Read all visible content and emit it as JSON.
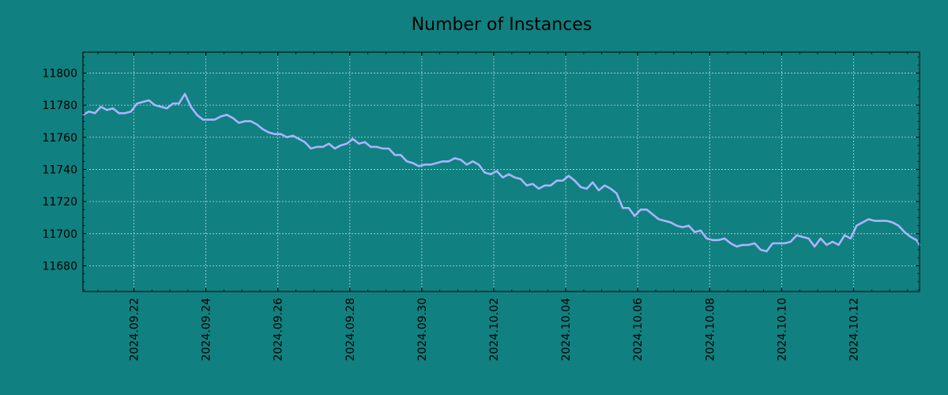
{
  "chart_data": {
    "type": "line",
    "title": "Number of Instances",
    "xlabel": "",
    "ylabel": "",
    "x_tick_labels": [
      "2024.09.22",
      "2024.09.24",
      "2024.09.26",
      "2024.09.28",
      "2024.09.30",
      "2024.10.02",
      "2024.10.04",
      "2024.10.06",
      "2024.10.08",
      "2024.10.10",
      "2024.10.12"
    ],
    "y_tick_labels": [
      "11680",
      "11700",
      "11720",
      "11740",
      "11760",
      "11780",
      "11800"
    ],
    "xlim": [
      "2024-09-20T14:00",
      "2024-10-13T20:00"
    ],
    "ylim": [
      11664,
      11813
    ],
    "grid": true,
    "colors": {
      "background": "#108080",
      "line": "#aab4ff",
      "grid": "#d0d0d0",
      "axes": "#000000"
    },
    "series": [
      {
        "points": [
          [
            "2024-09-20T14:00",
            11774
          ],
          [
            "2024-09-20T18:00",
            11776
          ],
          [
            "2024-09-20T22:00",
            11775
          ],
          [
            "2024-09-21T02:00",
            11779
          ],
          [
            "2024-09-21T06:00",
            11777
          ],
          [
            "2024-09-21T10:00",
            11778
          ],
          [
            "2024-09-21T14:00",
            11775
          ],
          [
            "2024-09-21T18:00",
            11775
          ],
          [
            "2024-09-21T22:00",
            11776
          ],
          [
            "2024-09-22T02:00",
            11781
          ],
          [
            "2024-09-22T06:00",
            11782
          ],
          [
            "2024-09-22T10:00",
            11783
          ],
          [
            "2024-09-22T14:00",
            11780
          ],
          [
            "2024-09-22T18:00",
            11779
          ],
          [
            "2024-09-22T22:00",
            11778
          ],
          [
            "2024-09-23T02:00",
            11781
          ],
          [
            "2024-09-23T06:00",
            11781
          ],
          [
            "2024-09-23T10:00",
            11787
          ],
          [
            "2024-09-23T14:00",
            11779
          ],
          [
            "2024-09-23T18:00",
            11774
          ],
          [
            "2024-09-23T22:00",
            11771
          ],
          [
            "2024-09-24T02:00",
            11771
          ],
          [
            "2024-09-24T06:00",
            11771
          ],
          [
            "2024-09-24T10:00",
            11773
          ],
          [
            "2024-09-24T14:00",
            11774
          ],
          [
            "2024-09-24T18:00",
            11772
          ],
          [
            "2024-09-24T22:00",
            11769
          ],
          [
            "2024-09-25T02:00",
            11770
          ],
          [
            "2024-09-25T06:00",
            11770
          ],
          [
            "2024-09-25T10:00",
            11768
          ],
          [
            "2024-09-25T14:00",
            11765
          ],
          [
            "2024-09-25T18:00",
            11763
          ],
          [
            "2024-09-25T22:00",
            11762
          ],
          [
            "2024-09-26T02:00",
            11762
          ],
          [
            "2024-09-26T06:00",
            11760
          ],
          [
            "2024-09-26T10:00",
            11761
          ],
          [
            "2024-09-26T14:00",
            11759
          ],
          [
            "2024-09-26T18:00",
            11757
          ],
          [
            "2024-09-26T22:00",
            11753
          ],
          [
            "2024-09-27T02:00",
            11754
          ],
          [
            "2024-09-27T06:00",
            11754
          ],
          [
            "2024-09-27T10:00",
            11756
          ],
          [
            "2024-09-27T14:00",
            11753
          ],
          [
            "2024-09-27T18:00",
            11755
          ],
          [
            "2024-09-27T22:00",
            11756
          ],
          [
            "2024-09-28T02:00",
            11759
          ],
          [
            "2024-09-28T06:00",
            11756
          ],
          [
            "2024-09-28T10:00",
            11757
          ],
          [
            "2024-09-28T14:00",
            11754
          ],
          [
            "2024-09-28T18:00",
            11754
          ],
          [
            "2024-09-28T22:00",
            11753
          ],
          [
            "2024-09-29T02:00",
            11753
          ],
          [
            "2024-09-29T06:00",
            11749
          ],
          [
            "2024-09-29T10:00",
            11749
          ],
          [
            "2024-09-29T14:00",
            11745
          ],
          [
            "2024-09-29T18:00",
            11744
          ],
          [
            "2024-09-29T22:00",
            11742
          ],
          [
            "2024-09-30T02:00",
            11743
          ],
          [
            "2024-09-30T06:00",
            11743
          ],
          [
            "2024-09-30T10:00",
            11744
          ],
          [
            "2024-09-30T14:00",
            11745
          ],
          [
            "2024-09-30T18:00",
            11745
          ],
          [
            "2024-09-30T22:00",
            11747
          ],
          [
            "2024-10-01T02:00",
            11746
          ],
          [
            "2024-10-01T06:00",
            11743
          ],
          [
            "2024-10-01T10:00",
            11745
          ],
          [
            "2024-10-01T14:00",
            11743
          ],
          [
            "2024-10-01T18:00",
            11738
          ],
          [
            "2024-10-01T22:00",
            11737
          ],
          [
            "2024-10-02T02:00",
            11739
          ],
          [
            "2024-10-02T06:00",
            11735
          ],
          [
            "2024-10-02T10:00",
            11737
          ],
          [
            "2024-10-02T14:00",
            11735
          ],
          [
            "2024-10-02T18:00",
            11734
          ],
          [
            "2024-10-02T22:00",
            11730
          ],
          [
            "2024-10-03T02:00",
            11731
          ],
          [
            "2024-10-03T06:00",
            11728
          ],
          [
            "2024-10-03T10:00",
            11730
          ],
          [
            "2024-10-03T14:00",
            11730
          ],
          [
            "2024-10-03T18:00",
            11733
          ],
          [
            "2024-10-03T22:00",
            11733
          ],
          [
            "2024-10-04T02:00",
            11736
          ],
          [
            "2024-10-04T06:00",
            11733
          ],
          [
            "2024-10-04T10:00",
            11729
          ],
          [
            "2024-10-04T14:00",
            11728
          ],
          [
            "2024-10-04T18:00",
            11732
          ],
          [
            "2024-10-04T22:00",
            11727
          ],
          [
            "2024-10-05T02:00",
            11730
          ],
          [
            "2024-10-05T06:00",
            11728
          ],
          [
            "2024-10-05T10:00",
            11725
          ],
          [
            "2024-10-05T14:00",
            11716
          ],
          [
            "2024-10-05T18:00",
            11716
          ],
          [
            "2024-10-05T22:00",
            11711
          ],
          [
            "2024-10-06T02:00",
            11715
          ],
          [
            "2024-10-06T06:00",
            11715
          ],
          [
            "2024-10-06T10:00",
            11712
          ],
          [
            "2024-10-06T14:00",
            11709
          ],
          [
            "2024-10-06T18:00",
            11708
          ],
          [
            "2024-10-06T22:00",
            11707
          ],
          [
            "2024-10-07T02:00",
            11705
          ],
          [
            "2024-10-07T06:00",
            11704
          ],
          [
            "2024-10-07T10:00",
            11705
          ],
          [
            "2024-10-07T14:00",
            11701
          ],
          [
            "2024-10-07T18:00",
            11702
          ],
          [
            "2024-10-07T22:00",
            11697
          ],
          [
            "2024-10-08T02:00",
            11696
          ],
          [
            "2024-10-08T06:00",
            11696
          ],
          [
            "2024-10-08T10:00",
            11697
          ],
          [
            "2024-10-08T14:00",
            11694
          ],
          [
            "2024-10-08T18:00",
            11692
          ],
          [
            "2024-10-08T22:00",
            11693
          ],
          [
            "2024-10-09T02:00",
            11693
          ],
          [
            "2024-10-09T06:00",
            11694
          ],
          [
            "2024-10-09T10:00",
            11690
          ],
          [
            "2024-10-09T14:00",
            11689
          ],
          [
            "2024-10-09T18:00",
            11694
          ],
          [
            "2024-10-09T22:00",
            11694
          ],
          [
            "2024-10-10T02:00",
            11694
          ],
          [
            "2024-10-10T06:00",
            11695
          ],
          [
            "2024-10-10T10:00",
            11699
          ],
          [
            "2024-10-10T14:00",
            11698
          ],
          [
            "2024-10-10T18:00",
            11697
          ],
          [
            "2024-10-10T22:00",
            11692
          ],
          [
            "2024-10-11T02:00",
            11697
          ],
          [
            "2024-10-11T06:00",
            11693
          ],
          [
            "2024-10-11T10:00",
            11695
          ],
          [
            "2024-10-11T14:00",
            11693
          ],
          [
            "2024-10-11T18:00",
            11699
          ],
          [
            "2024-10-11T22:00",
            11697
          ],
          [
            "2024-10-12T02:00",
            11705
          ],
          [
            "2024-10-12T06:00",
            11707
          ],
          [
            "2024-10-12T10:00",
            11709
          ],
          [
            "2024-10-12T14:00",
            11708
          ],
          [
            "2024-10-12T18:00",
            11708
          ],
          [
            "2024-10-12T22:00",
            11708
          ],
          [
            "2024-10-13T02:00",
            11707
          ],
          [
            "2024-10-13T06:00",
            11705
          ],
          [
            "2024-10-13T10:00",
            11701
          ],
          [
            "2024-10-13T14:00",
            11698
          ],
          [
            "2024-10-13T18:00",
            11696
          ],
          [
            "2024-10-13T20:00",
            11693
          ]
        ]
      }
    ]
  }
}
